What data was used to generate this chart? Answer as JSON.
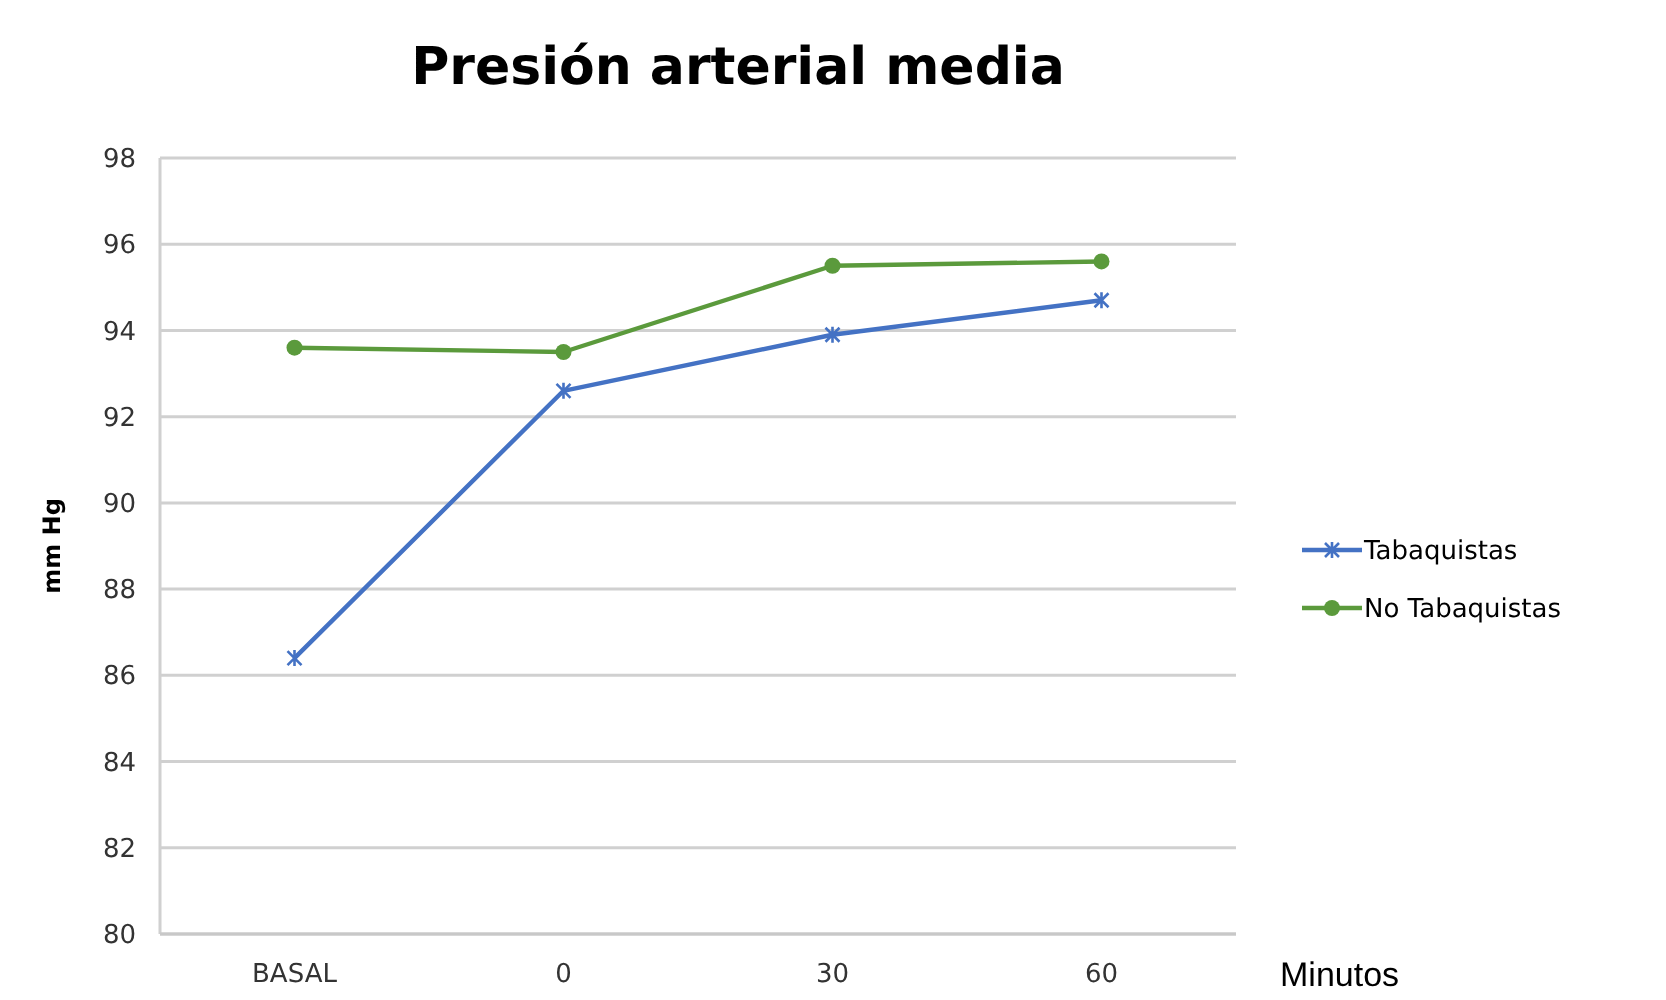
{
  "chart_data": {
    "type": "line",
    "title": "Presión arterial media",
    "xlabel": "Minutos",
    "ylabel": "mm Hg",
    "categories": [
      "BASAL",
      "0",
      "30",
      "60"
    ],
    "series": [
      {
        "name": "Tabaquistas",
        "color": "#4472c4",
        "marker": "cross",
        "values": [
          86.4,
          92.6,
          93.9,
          94.7
        ]
      },
      {
        "name": "No Tabaquistas",
        "color": "#5b9a3c",
        "marker": "circle",
        "values": [
          93.6,
          93.5,
          95.5,
          95.6
        ]
      }
    ],
    "ylim": [
      80,
      98
    ],
    "yticks": [
      80,
      82,
      84,
      86,
      88,
      90,
      92,
      94,
      96,
      98
    ],
    "grid": "y",
    "legend": "right"
  }
}
